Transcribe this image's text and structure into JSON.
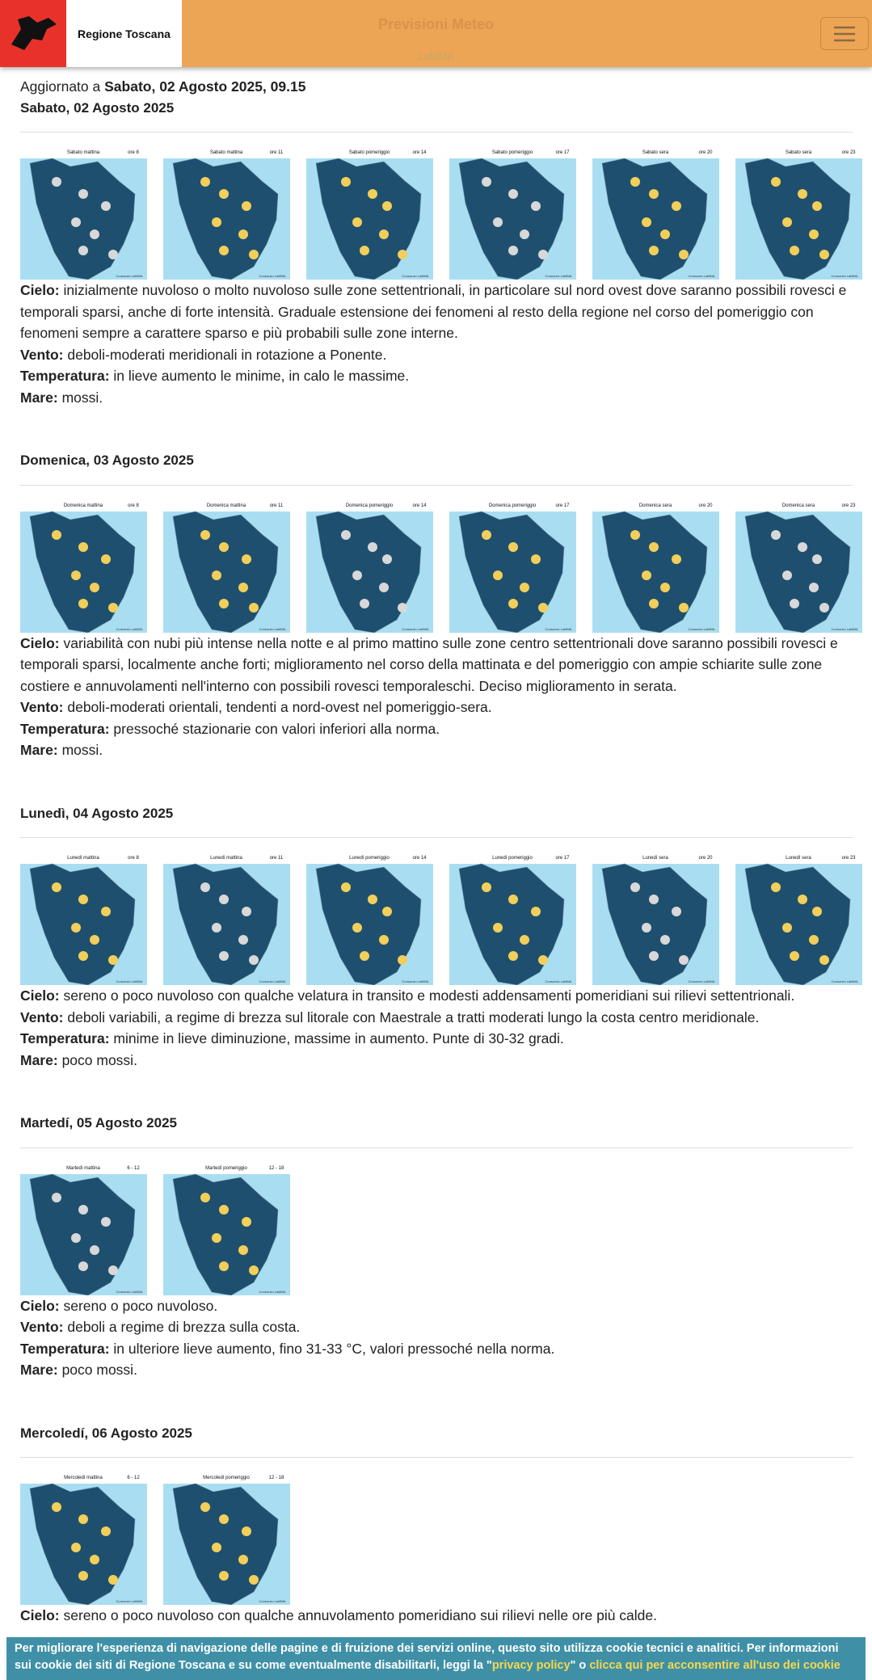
{
  "header": {
    "brand": "Regione Toscana",
    "title": "Previsioni Meteo",
    "subtitle": "LaMMA"
  },
  "updated": {
    "prefix": "Aggiornato a",
    "value": "Sabato, 02 Agosto 2025, 09.15"
  },
  "map_credit": "Consorzio LaMMA",
  "days": [
    {
      "date": "Sabato, 02 Agosto 2025",
      "maps": [
        {
          "caption": "Sabato mattina",
          "time": "ore 8"
        },
        {
          "caption": "Sabato mattina",
          "time": "ore 11"
        },
        {
          "caption": "Sabato pomeriggio",
          "time": "ore 14"
        },
        {
          "caption": "Sabato pomeriggio",
          "time": "ore 17"
        },
        {
          "caption": "Sabato sera",
          "time": "ore 20"
        },
        {
          "caption": "Sabato sera",
          "time": "ore 23"
        }
      ],
      "items": [
        {
          "label": "Cielo:",
          "text": "inizialmente nuvoloso o molto nuvoloso sulle zone settentrionali, in particolare sul nord ovest dove saranno possibili rovesci e temporali sparsi, anche di forte intensità. Graduale estensione dei fenomeni al resto della regione nel corso del pomeriggio con fenomeni sempre a carattere sparso e più probabili sulle zone interne."
        },
        {
          "label": "Vento:",
          "text": "deboli-moderati meridionali in rotazione a Ponente."
        },
        {
          "label": "Temperatura:",
          "text": "in lieve aumento le minime, in calo le massime."
        },
        {
          "label": "Mare:",
          "text": "mossi."
        }
      ]
    },
    {
      "date": "Domenica, 03 Agosto 2025",
      "maps": [
        {
          "caption": "Domenica mattina",
          "time": "ore 8"
        },
        {
          "caption": "Domenica mattina",
          "time": "ore 11"
        },
        {
          "caption": "Domenica pomeriggio",
          "time": "ore 14"
        },
        {
          "caption": "Domenica pomeriggio",
          "time": "ore 17"
        },
        {
          "caption": "Domenica sera",
          "time": "ore 20"
        },
        {
          "caption": "Domenica sera",
          "time": "ore 23"
        }
      ],
      "items": [
        {
          "label": "Cielo:",
          "text": "variabilità con nubi più intense nella notte e al primo mattino sulle zone centro settentrionali dove saranno possibili rovesci e temporali sparsi, localmente anche forti; miglioramento nel corso della mattinata e del pomeriggio con ampie schiarite sulle zone costiere e annuvolamenti nell'interno con possibili rovesci temporaleschi. Deciso miglioramento in serata."
        },
        {
          "label": "Vento:",
          "text": "deboli-moderati orientali, tendenti a nord-ovest nel pomeriggio-sera."
        },
        {
          "label": "Temperatura:",
          "text": "pressoché stazionarie con valori inferiori alla norma."
        },
        {
          "label": "Mare:",
          "text": "mossi."
        }
      ]
    },
    {
      "date": "Lunedì, 04 Agosto 2025",
      "maps": [
        {
          "caption": "Lunedì mattina",
          "time": "ore 8"
        },
        {
          "caption": "Lunedì mattina",
          "time": "ore 11"
        },
        {
          "caption": "Lunedì pomeriggio",
          "time": "ore 14"
        },
        {
          "caption": "Lunedì pomeriggio",
          "time": "ore 17"
        },
        {
          "caption": "Lunedì sera",
          "time": "ore 20"
        },
        {
          "caption": "Lunedì sera",
          "time": "ore 23"
        }
      ],
      "items": [
        {
          "label": "Cielo:",
          "text": "sereno o poco nuvoloso con qualche velatura in transito e modesti addensamenti pomeridiani sui rilievi settentrionali."
        },
        {
          "label": "Vento:",
          "text": "deboli variabili, a regime di brezza sul litorale con Maestrale a tratti moderati lungo la costa centro meridionale."
        },
        {
          "label": "Temperatura:",
          "text": "minime in lieve diminuzione, massime in aumento. Punte di 30-32 gradi."
        },
        {
          "label": "Mare:",
          "text": "poco mossi."
        }
      ]
    },
    {
      "date": "Martedí, 05 Agosto 2025",
      "maps": [
        {
          "caption": "Martedì mattina",
          "time": "6 - 12"
        },
        {
          "caption": "Martedì pomeriggio",
          "time": "12 - 18"
        }
      ],
      "items": [
        {
          "label": "Cielo:",
          "text": "sereno o poco nuvoloso."
        },
        {
          "label": "Vento:",
          "text": "deboli a regime di brezza sulla costa."
        },
        {
          "label": "Temperatura:",
          "text": "in ulteriore lieve aumento, fino 31-33 °C, valori pressoché nella norma."
        },
        {
          "label": "Mare:",
          "text": "poco mossi."
        }
      ]
    },
    {
      "date": "Mercoledí, 06 Agosto 2025",
      "maps": [
        {
          "caption": "Mercoledì mattina",
          "time": "6 - 12"
        },
        {
          "caption": "Mercoledì pomeriggio",
          "time": "12 - 18"
        }
      ],
      "items": [
        {
          "label": "Cielo:",
          "text": "sereno o poco nuvoloso con qualche annuvolamento pomeridiano sui rilievi nelle ore più calde."
        }
      ]
    }
  ],
  "cookie": {
    "text": "Per migliorare l'esperienza di navigazione delle pagine e di fruizione dei servizi online, questo sito utilizza cookie tecnici e analitici. Per informazioni sui cookie dei siti di Regione Toscana e su come eventualmente disabilitarli, leggi la \"",
    "link1": "privacy policy",
    "middle": "\" o ",
    "link2": "clicca qui per acconsentire all'uso dei cookie"
  }
}
